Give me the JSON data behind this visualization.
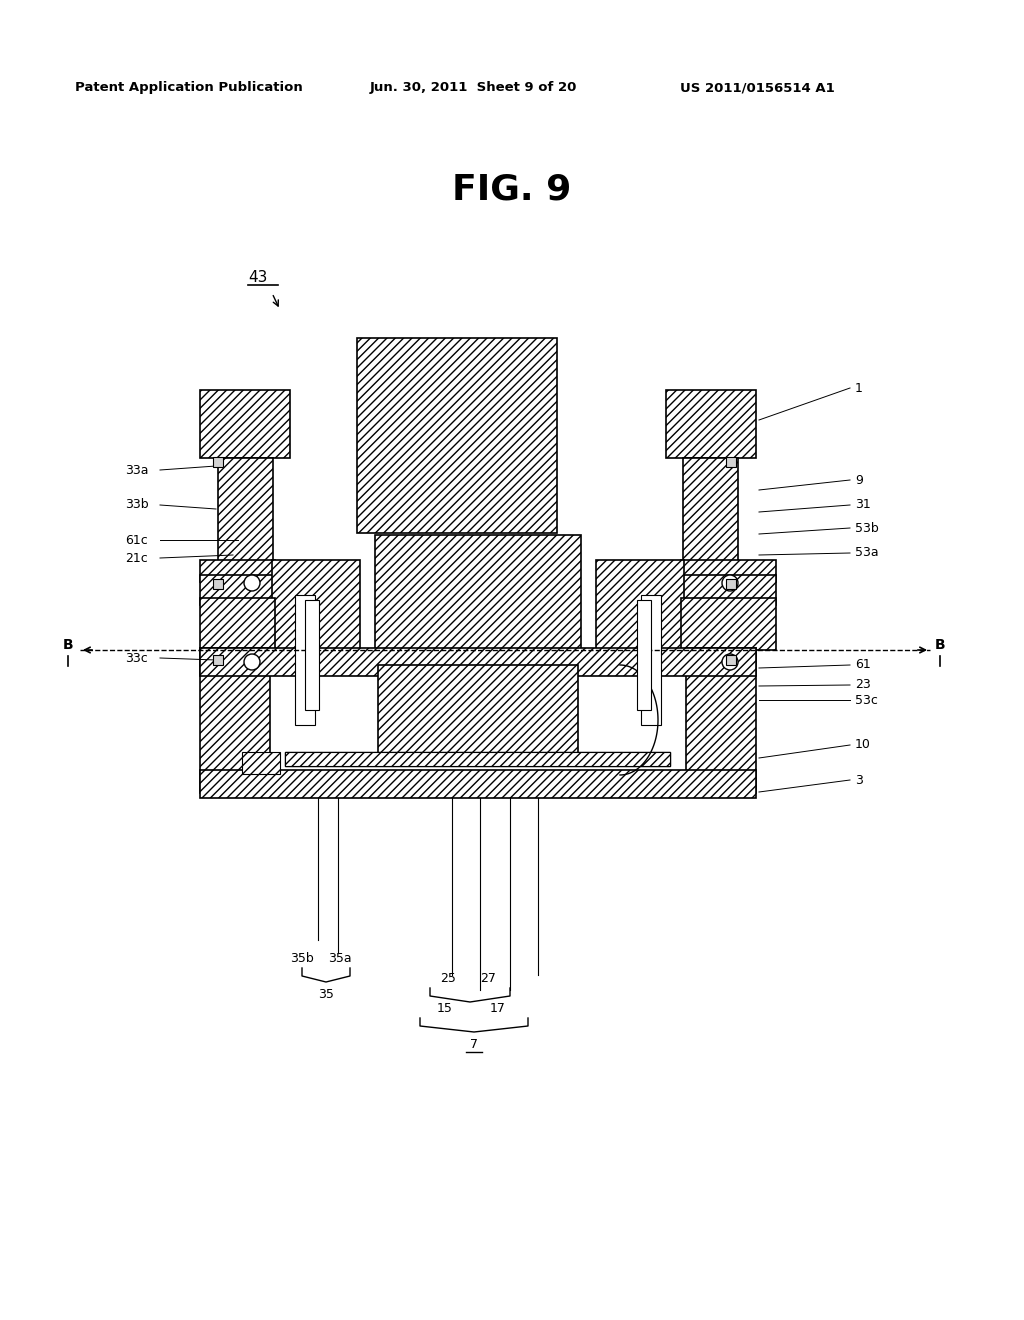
{
  "title": "FIG. 9",
  "header_left": "Patent Application Publication",
  "header_center": "Jun. 30, 2011  Sheet 9 of 20",
  "header_right": "US 2011/0156514 A1",
  "bg_color": "#ffffff"
}
